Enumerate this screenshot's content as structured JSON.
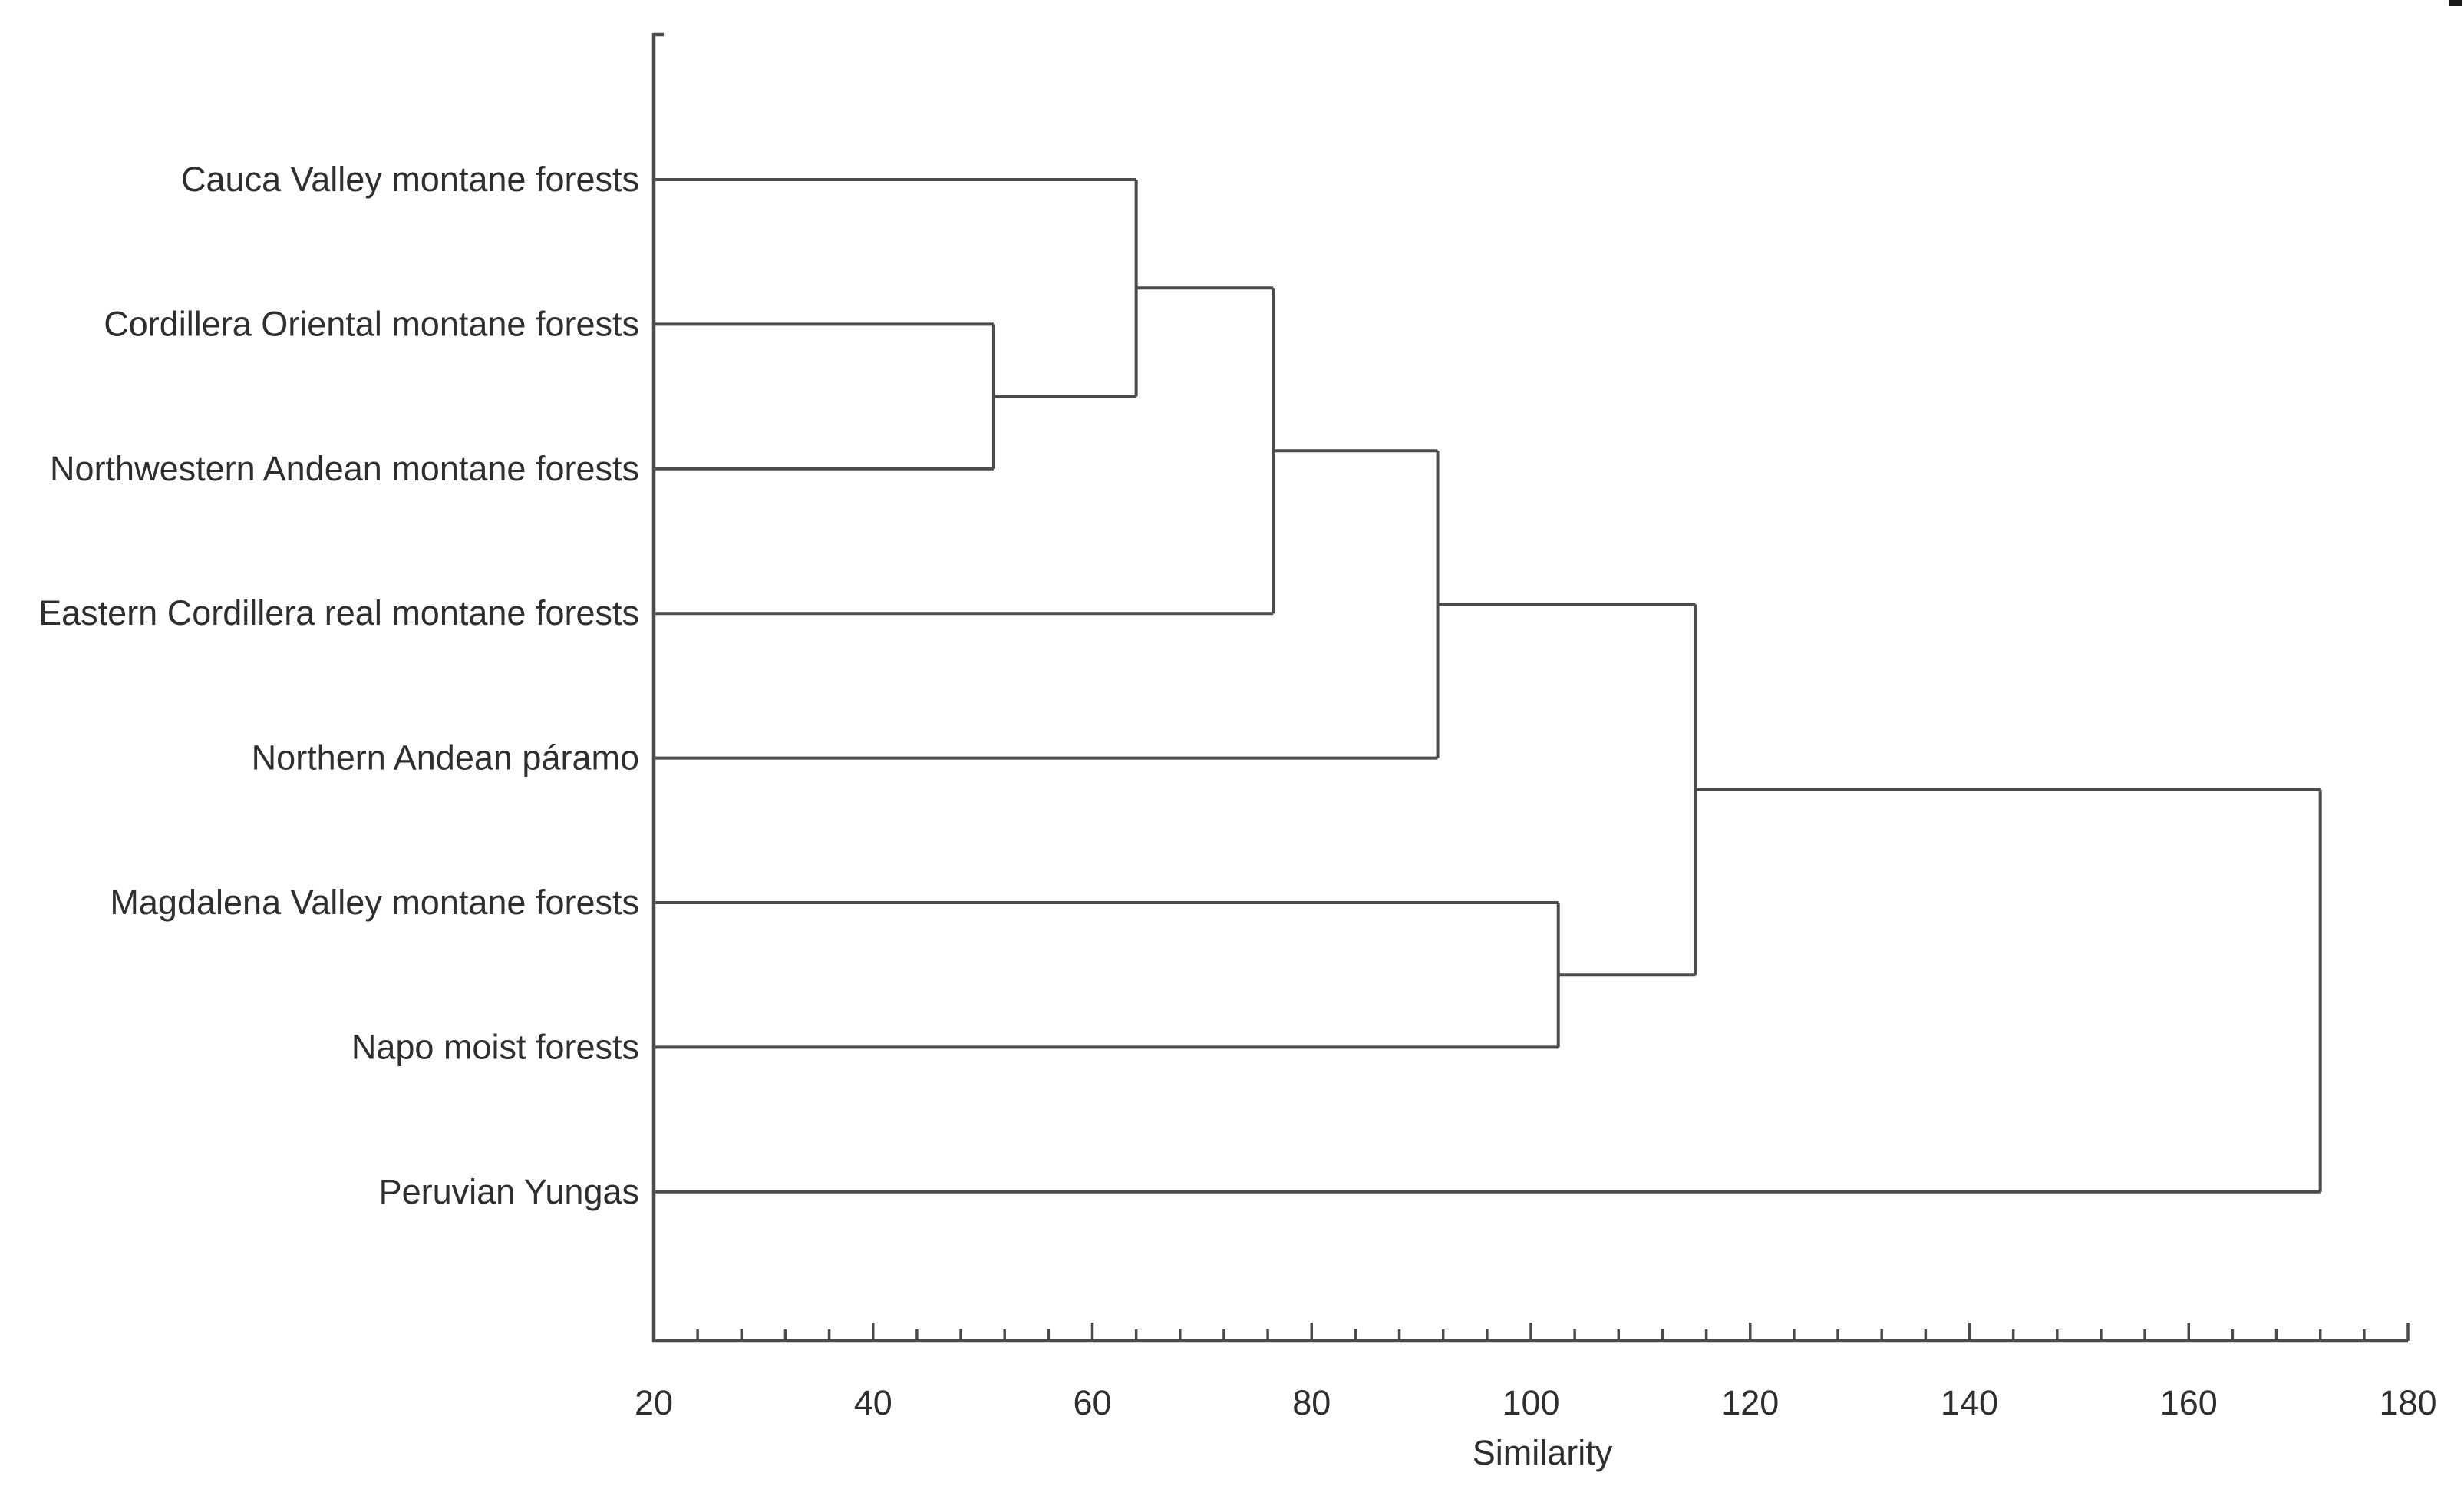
{
  "chart_data": {
    "type": "dendrogram",
    "orientation": "horizontal",
    "title": "",
    "xlabel": "Similarity",
    "x_axis": {
      "min": 20,
      "max": 180,
      "major_tick_step": 20,
      "minor_tick_step": 4,
      "tick_labels": [
        "20",
        "40",
        "60",
        "80",
        "100",
        "120",
        "140",
        "160",
        "180"
      ],
      "ticks_inside": true,
      "grid": false
    },
    "leaves": [
      "Cauca Valley montane forests",
      "Cordillera Oriental montane forests",
      "Northwestern Andean montane forests",
      "Eastern Cordillera real montane forests",
      "Northern Andean páramo",
      "Magdalena Valley montane forests",
      "Napo moist forests",
      "Peruvian Yungas"
    ],
    "merges": [
      {
        "children": [
          "leaf:1",
          "leaf:2"
        ],
        "similarity": 51
      },
      {
        "children": [
          "leaf:0",
          "node:0"
        ],
        "similarity": 64
      },
      {
        "children": [
          "node:1",
          "leaf:3"
        ],
        "similarity": 76.5
      },
      {
        "children": [
          "node:2",
          "leaf:4"
        ],
        "similarity": 91.5
      },
      {
        "children": [
          "leaf:5",
          "leaf:6"
        ],
        "similarity": 102.5
      },
      {
        "children": [
          "node:3",
          "node:4"
        ],
        "similarity": 115
      },
      {
        "children": [
          "node:5",
          "leaf:7"
        ],
        "similarity": 172
      }
    ],
    "line_color": "#4b4b4b",
    "text_color": "#2e2e2e",
    "background_color": "#ffffff",
    "corner_artifact": true
  }
}
